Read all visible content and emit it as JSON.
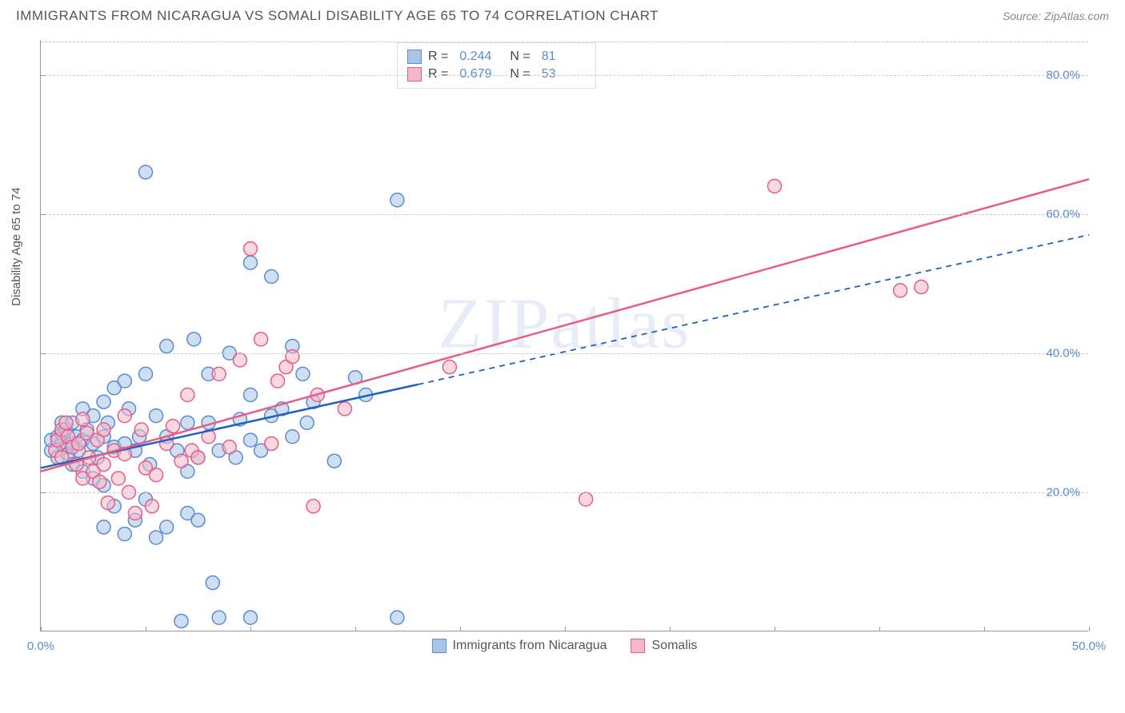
{
  "header": {
    "title": "IMMIGRANTS FROM NICARAGUA VS SOMALI DISABILITY AGE 65 TO 74 CORRELATION CHART",
    "source": "Source: ZipAtlas.com"
  },
  "watermark": "ZIPatlas",
  "axis": {
    "ylabel": "Disability Age 65 to 74",
    "xlim": [
      0,
      50
    ],
    "ylim": [
      0,
      85
    ],
    "xticks": [
      0,
      5,
      10,
      15,
      20,
      25,
      30,
      35,
      40,
      45,
      50
    ],
    "xtick_labels": {
      "0": "0.0%",
      "50": "50.0%"
    },
    "yticks": [
      20,
      40,
      60,
      80
    ],
    "ytick_labels": {
      "20": "20.0%",
      "40": "40.0%",
      "60": "60.0%",
      "80": "80.0%"
    },
    "grid_color": "#cccccc"
  },
  "series": [
    {
      "name": "Immigrants from Nicaragua",
      "fill": "#a8c5e8",
      "stroke": "#5b8bd4",
      "line_color": "#2060c0",
      "R": "0.244",
      "N": "81",
      "trend": {
        "x1": 0,
        "y1": 23.5,
        "solid_x2": 18,
        "solid_y2": 35.5,
        "dash_x2": 50,
        "dash_y2": 57
      },
      "points": [
        [
          0.5,
          26
        ],
        [
          0.5,
          27.5
        ],
        [
          0.8,
          28
        ],
        [
          0.8,
          25
        ],
        [
          1,
          27
        ],
        [
          1,
          28.5
        ],
        [
          1,
          30
        ],
        [
          1.2,
          26.5
        ],
        [
          1.2,
          29
        ],
        [
          1.3,
          25.5
        ],
        [
          1.5,
          27
        ],
        [
          1.5,
          30
        ],
        [
          1.5,
          24
        ],
        [
          1.7,
          28
        ],
        [
          1.8,
          26
        ],
        [
          2,
          32
        ],
        [
          2,
          27.5
        ],
        [
          2,
          23
        ],
        [
          2.2,
          29
        ],
        [
          2.5,
          27
        ],
        [
          2.5,
          22
        ],
        [
          2.5,
          31
        ],
        [
          2.7,
          25
        ],
        [
          3,
          33
        ],
        [
          3,
          28
        ],
        [
          3,
          21
        ],
        [
          3,
          15
        ],
        [
          3.2,
          30
        ],
        [
          3.5,
          26.5
        ],
        [
          3.5,
          18
        ],
        [
          3.5,
          35
        ],
        [
          4,
          27
        ],
        [
          4,
          36
        ],
        [
          4,
          14
        ],
        [
          4.2,
          32
        ],
        [
          4.5,
          26
        ],
        [
          4.5,
          16
        ],
        [
          4.7,
          28
        ],
        [
          5,
          37
        ],
        [
          5,
          19
        ],
        [
          5,
          66
        ],
        [
          5.2,
          24
        ],
        [
          5.5,
          13.5
        ],
        [
          5.5,
          31
        ],
        [
          6,
          15
        ],
        [
          6,
          41
        ],
        [
          6,
          28
        ],
        [
          6.5,
          26
        ],
        [
          6.7,
          1.5
        ],
        [
          7,
          17
        ],
        [
          7,
          23
        ],
        [
          7,
          30
        ],
        [
          7.3,
          42
        ],
        [
          7.5,
          16
        ],
        [
          7.5,
          25
        ],
        [
          8,
          37
        ],
        [
          8,
          30
        ],
        [
          8.2,
          7
        ],
        [
          8.5,
          26
        ],
        [
          8.5,
          2
        ],
        [
          9,
          40
        ],
        [
          9.3,
          25
        ],
        [
          9.5,
          30.5
        ],
        [
          10,
          53
        ],
        [
          10,
          34
        ],
        [
          10,
          27.5
        ],
        [
          10,
          2
        ],
        [
          10.5,
          26
        ],
        [
          11,
          31
        ],
        [
          11,
          51
        ],
        [
          11.5,
          32
        ],
        [
          12,
          41
        ],
        [
          12,
          28
        ],
        [
          12.5,
          37
        ],
        [
          12.7,
          30
        ],
        [
          13,
          33
        ],
        [
          14,
          24.5
        ],
        [
          15,
          36.5
        ],
        [
          15.5,
          34
        ],
        [
          17,
          62
        ],
        [
          17,
          2
        ]
      ]
    },
    {
      "name": "Somalis",
      "fill": "#f5b8c8",
      "stroke": "#e85d85",
      "line_color": "#e85d85",
      "R": "0.679",
      "N": "53",
      "trend": {
        "x1": 0,
        "y1": 23,
        "solid_x2": 50,
        "solid_y2": 65,
        "dash_x2": 50,
        "dash_y2": 65
      },
      "points": [
        [
          0.7,
          26
        ],
        [
          0.8,
          27.5
        ],
        [
          1,
          29
        ],
        [
          1,
          25
        ],
        [
          1.2,
          30
        ],
        [
          1.3,
          28
        ],
        [
          1.5,
          26.5
        ],
        [
          1.7,
          24
        ],
        [
          1.8,
          27
        ],
        [
          2,
          30.5
        ],
        [
          2,
          22
        ],
        [
          2.2,
          28.5
        ],
        [
          2.3,
          25
        ],
        [
          2.5,
          23
        ],
        [
          2.7,
          27.5
        ],
        [
          2.8,
          21.5
        ],
        [
          3,
          29
        ],
        [
          3,
          24
        ],
        [
          3.2,
          18.5
        ],
        [
          3.5,
          26
        ],
        [
          3.7,
          22
        ],
        [
          4,
          31
        ],
        [
          4,
          25.5
        ],
        [
          4.2,
          20
        ],
        [
          4.5,
          17
        ],
        [
          4.8,
          29
        ],
        [
          5,
          23.5
        ],
        [
          5.3,
          18
        ],
        [
          5.5,
          22.5
        ],
        [
          6,
          27
        ],
        [
          6.3,
          29.5
        ],
        [
          6.7,
          24.5
        ],
        [
          7,
          34
        ],
        [
          7.2,
          26
        ],
        [
          7.5,
          25
        ],
        [
          8,
          28
        ],
        [
          8.5,
          37
        ],
        [
          9,
          26.5
        ],
        [
          9.5,
          39
        ],
        [
          10,
          55
        ],
        [
          10.5,
          42
        ],
        [
          11,
          27
        ],
        [
          11.3,
          36
        ],
        [
          11.7,
          38
        ],
        [
          12,
          39.5
        ],
        [
          13,
          18
        ],
        [
          13.2,
          34
        ],
        [
          14.5,
          32
        ],
        [
          19.5,
          38
        ],
        [
          26,
          19
        ],
        [
          35,
          64
        ],
        [
          41,
          49
        ],
        [
          42,
          49.5
        ]
      ]
    }
  ],
  "bottom_legend": [
    {
      "label": "Immigrants from Nicaragua",
      "fill": "#a8c5e8",
      "stroke": "#5b8bd4"
    },
    {
      "label": "Somalis",
      "fill": "#f5b8c8",
      "stroke": "#e85d85"
    }
  ],
  "style": {
    "marker_radius": 8.5,
    "marker_opacity": 0.55,
    "background": "#ffffff",
    "text_color": "#555555",
    "value_color": "#5b8bd4"
  }
}
